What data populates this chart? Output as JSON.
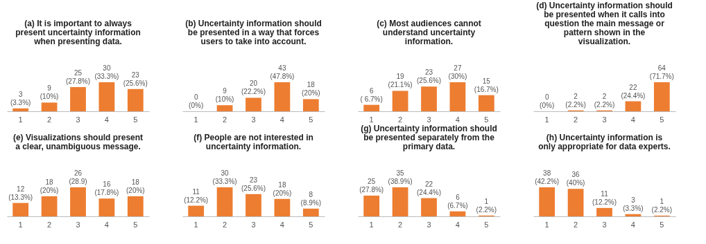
{
  "chart_data": [
    {
      "type": "bar",
      "title": "(a) It is important to always present uncertainty information when presenting data.",
      "categories": [
        "1",
        "2",
        "3",
        "4",
        "5"
      ],
      "values": [
        3,
        9,
        25,
        30,
        23
      ],
      "value_labels": [
        "3\n(3.3%)",
        "9\n(10%)",
        "25\n(27.8%)",
        "30\n(33.3%)",
        "23\n(25.6%)"
      ],
      "color": "#ed7d31"
    },
    {
      "type": "bar",
      "title": "(b) Uncertainty information should be presented in a way that forces users to take into account.",
      "categories": [
        "1",
        "2",
        "3",
        "4",
        "5"
      ],
      "values": [
        0,
        9,
        20,
        43,
        18
      ],
      "value_labels": [
        "0\n(0%)",
        "9\n(10%)",
        "20\n(22.2%)",
        "43\n(47.8%)",
        "18\n(20%)"
      ],
      "color": "#ed7d31"
    },
    {
      "type": "bar",
      "title": "(c) Most audiences cannot understand uncertainty information.",
      "categories": [
        "1",
        "2",
        "3",
        "4",
        "5"
      ],
      "values": [
        6,
        19,
        23,
        27,
        15
      ],
      "value_labels": [
        "6\n( 6.7%)",
        "19\n(21.1%)",
        "23\n(25.6%)",
        "27\n(30%)",
        "15\n(16.7%)"
      ],
      "color": "#ed7d31"
    },
    {
      "type": "bar",
      "title": "(d) Uncertainty information should be presented when it calls into question the main message or pattern shown in the visualization.",
      "categories": [
        "1",
        "2",
        "3",
        "4",
        "5"
      ],
      "values": [
        0,
        2,
        2,
        22,
        64
      ],
      "value_labels": [
        "0\n(0%)",
        "2\n(2.2%)",
        "2\n(2.2%)",
        "22\n(24.4%)",
        "64\n(71.7%)"
      ],
      "color": "#ed7d31"
    },
    {
      "type": "bar",
      "title": "(e) Visualizations should present a clear, unambiguous message.",
      "categories": [
        "1",
        "2",
        "3",
        "4",
        "5"
      ],
      "values": [
        12,
        18,
        26,
        16,
        18
      ],
      "value_labels": [
        "12\n(13.3%)",
        "18\n(20%)",
        "26\n(28.9)",
        "16\n(17.8%)",
        "18\n(20%)"
      ],
      "color": "#ed7d31"
    },
    {
      "type": "bar",
      "title": "(f) People are not interested in uncertainty information.",
      "categories": [
        "1",
        "2",
        "3",
        "4",
        "5"
      ],
      "values": [
        11,
        30,
        23,
        18,
        8
      ],
      "value_labels": [
        "11\n(12.2%)",
        "30\n(33.3%)",
        "23\n(25.6%)",
        "18\n(20%)",
        "8\n(8.9%)"
      ],
      "color": "#ed7d31"
    },
    {
      "type": "bar",
      "title": "(g) Uncertainty information should be presented separately from the primary data.",
      "categories": [
        "1",
        "2",
        "3",
        "4",
        "5"
      ],
      "values": [
        25,
        35,
        22,
        6,
        1
      ],
      "value_labels": [
        "25\n(27.8%)",
        "35\n(38.9%)",
        "22\n(24.4%)",
        "6\n(6.7%)",
        "1\n(2.2%)"
      ],
      "color": "#ed7d31"
    },
    {
      "type": "bar",
      "title": "(h) Uncertainty information is only appropriate for data experts.",
      "categories": [
        "1",
        "2",
        "3",
        "4",
        "5"
      ],
      "values": [
        38,
        36,
        11,
        3,
        1
      ],
      "value_labels": [
        "38\n(42.2%)",
        "36\n(40%)",
        "11\n(12.2%)",
        "3\n(3.3%)",
        "1\n(2.2%)"
      ],
      "color": "#ed7d31"
    }
  ]
}
